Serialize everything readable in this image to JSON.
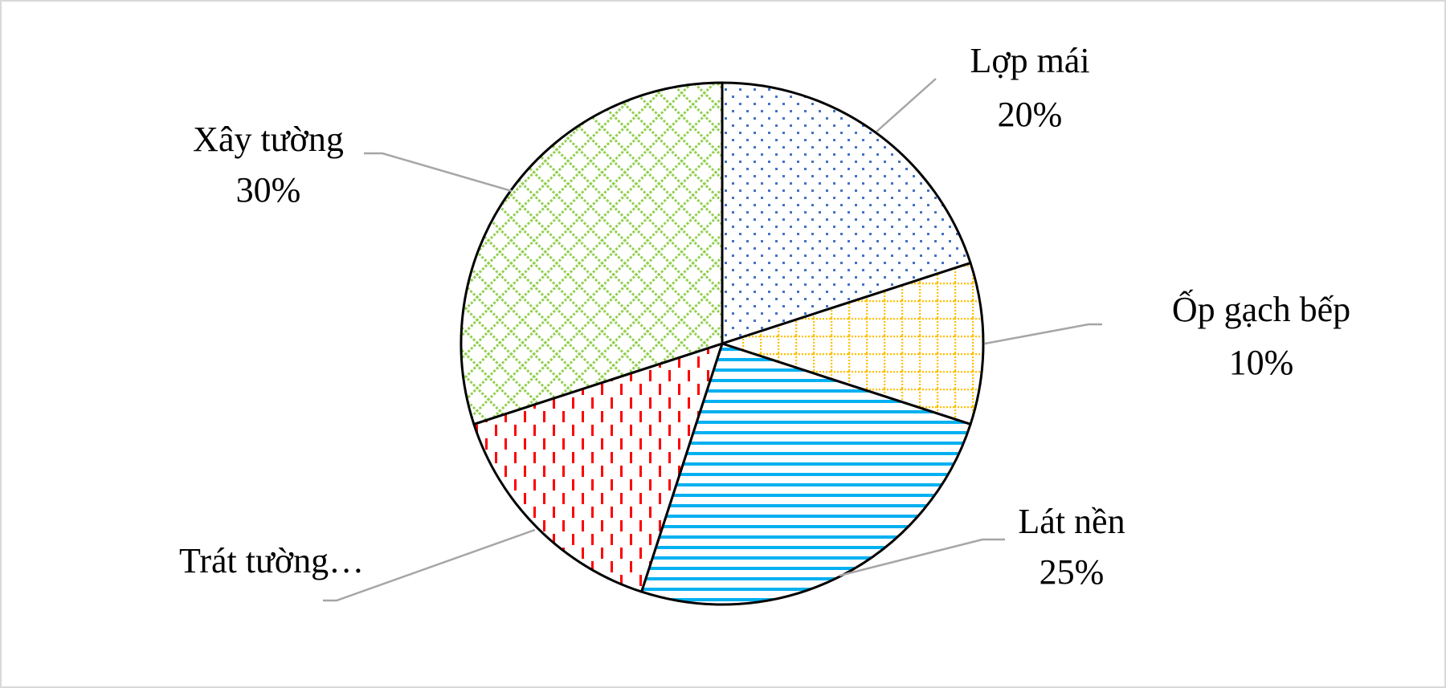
{
  "chart_data": {
    "type": "pie",
    "categories": [
      "Lợp mái",
      "Ốp gạch bếp",
      "Lát nền",
      "Trát tường…",
      "Xây tường"
    ],
    "values": [
      20,
      10,
      25,
      15,
      30
    ],
    "value_labels": [
      "20%",
      "10%",
      "25%",
      null,
      "30%"
    ],
    "colors": [
      "#4472c4",
      "#ffc000",
      "#00b0f0",
      "#ff0000",
      "#92d050"
    ],
    "patterns": [
      "dots",
      "grid",
      "hlines",
      "vdashes",
      "diagonal"
    ]
  }
}
